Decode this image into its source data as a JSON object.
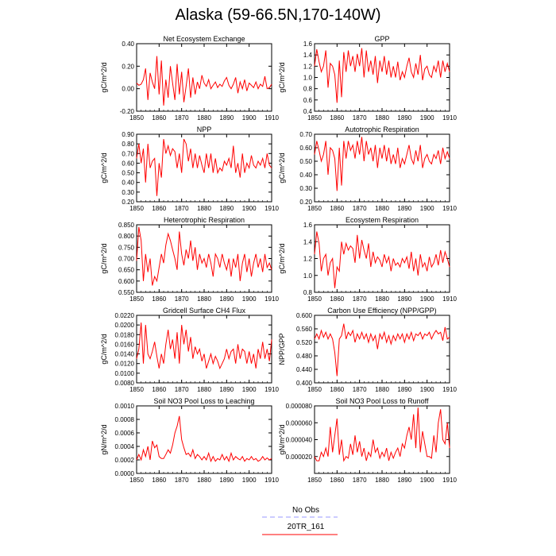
{
  "title": "Alaska (59-66.5N,170-140W)",
  "colors": {
    "obs": "#9999ff",
    "model": "#ff0000"
  },
  "legend": {
    "obs_label": "No Obs",
    "model_label": "20TR_161"
  },
  "chart_data": [
    {
      "type": "line",
      "title": "Net Ecosystem Exchange",
      "ylabel": "gC/m^2/d",
      "xlim": [
        1850,
        1910
      ],
      "ylim": [
        -0.2,
        0.4
      ],
      "xticks": [
        "1850",
        "1860",
        "1870",
        "1880",
        "1890",
        "1900",
        "1910"
      ],
      "yticks": [
        "-0.20",
        "0.00",
        "0.20",
        "0.40"
      ],
      "series": [
        {
          "values": [
            0.05,
            0.03,
            0.04,
            0.08,
            0.18,
            -0.1,
            0.14,
            0.06,
            0.0,
            0.29,
            -0.05,
            0.25,
            -0.15,
            0.08,
            -0.08,
            0.2,
            0.05,
            -0.1,
            0.22,
            -0.05,
            0.15,
            -0.12,
            0.02,
            0.18,
            -0.08,
            0.1,
            -0.05,
            0.06,
            0.0,
            0.12,
            0.05,
            0.02,
            0.08,
            0.0,
            0.03,
            0.06,
            0.01,
            0.04,
            0.02,
            0.07,
            0.1,
            0.03,
            0.0,
            0.04,
            0.1,
            -0.04,
            0.06,
            0.0,
            0.08,
            -0.02,
            0.05,
            0.03,
            0.01,
            0.06,
            0.0,
            0.04,
            0.02,
            0.11,
            0.0,
            0.01,
            0.04
          ]
        }
      ]
    },
    {
      "type": "line",
      "title": "GPP",
      "ylabel": "gC/m^2/d",
      "xlim": [
        1850,
        1910
      ],
      "ylim": [
        0.4,
        1.6
      ],
      "xticks": [
        "1850",
        "1860",
        "1870",
        "1880",
        "1890",
        "1900",
        "1910"
      ],
      "yticks": [
        "0.4",
        "0.6",
        "0.8",
        "1.0",
        "1.2",
        "1.4",
        "1.6"
      ],
      "series": [
        {
          "values": [
            1.2,
            1.5,
            1.28,
            1.1,
            1.2,
            1.48,
            0.82,
            1.25,
            1.2,
            1.05,
            0.55,
            1.3,
            0.65,
            1.45,
            1.1,
            1.48,
            1.2,
            1.38,
            1.1,
            1.42,
            1.2,
            1.52,
            1.0,
            1.48,
            1.1,
            1.3,
            1.05,
            1.38,
            0.9,
            1.3,
            1.1,
            1.38,
            1.05,
            1.3,
            1.0,
            1.2,
            1.0,
            1.28,
            0.95,
            1.1,
            1.0,
            1.2,
            1.35,
            1.1,
            1.0,
            1.25,
            1.05,
            1.4,
            0.95,
            1.15,
            1.2,
            1.05,
            1.0,
            1.2,
            1.1,
            1.3,
            1.0,
            1.3,
            1.1,
            1.25,
            1.1
          ]
        }
      ]
    },
    {
      "type": "line",
      "title": "NPP",
      "ylabel": "gC/m^2/d",
      "xlim": [
        1850,
        1910
      ],
      "ylim": [
        0.2,
        0.9
      ],
      "xticks": [
        "1850",
        "1860",
        "1870",
        "1880",
        "1890",
        "1900",
        "1910"
      ],
      "yticks": [
        "0.20",
        "0.30",
        "0.40",
        "0.50",
        "0.60",
        "0.70",
        "0.80",
        "0.90"
      ],
      "series": [
        {
          "values": [
            0.65,
            0.8,
            0.6,
            0.75,
            0.4,
            0.8,
            0.55,
            0.62,
            0.65,
            0.26,
            0.6,
            0.45,
            0.85,
            0.7,
            0.78,
            0.68,
            0.75,
            0.72,
            0.55,
            0.7,
            0.5,
            0.85,
            0.8,
            0.62,
            0.75,
            0.55,
            0.7,
            0.55,
            0.68,
            0.58,
            0.5,
            0.7,
            0.55,
            0.7,
            0.5,
            0.65,
            0.5,
            0.55,
            0.52,
            0.62,
            0.58,
            0.65,
            0.55,
            0.78,
            0.5,
            0.6,
            0.45,
            0.7,
            0.5,
            0.6,
            0.55,
            0.68,
            0.58,
            0.55,
            0.62,
            0.58,
            0.65,
            0.55,
            0.7,
            0.58,
            0.55
          ]
        }
      ]
    },
    {
      "type": "line",
      "title": "Autotrophic Respiration",
      "ylabel": "gC/m^2/d",
      "xlim": [
        1850,
        1910
      ],
      "ylim": [
        0.2,
        0.7
      ],
      "xticks": [
        "1850",
        "1860",
        "1870",
        "1880",
        "1890",
        "1900",
        "1910"
      ],
      "yticks": [
        "0.20",
        "0.30",
        "0.40",
        "0.50",
        "0.60",
        "0.70"
      ],
      "series": [
        {
          "values": [
            0.55,
            0.65,
            0.58,
            0.5,
            0.55,
            0.65,
            0.4,
            0.6,
            0.58,
            0.52,
            0.28,
            0.6,
            0.32,
            0.65,
            0.52,
            0.65,
            0.58,
            0.62,
            0.52,
            0.65,
            0.55,
            0.68,
            0.5,
            0.65,
            0.55,
            0.6,
            0.5,
            0.62,
            0.45,
            0.6,
            0.52,
            0.62,
            0.5,
            0.6,
            0.48,
            0.55,
            0.48,
            0.6,
            0.45,
            0.52,
            0.48,
            0.55,
            0.62,
            0.52,
            0.48,
            0.58,
            0.5,
            0.62,
            0.45,
            0.52,
            0.55,
            0.5,
            0.48,
            0.55,
            0.52,
            0.58,
            0.48,
            0.6,
            0.52,
            0.57,
            0.52
          ]
        }
      ]
    },
    {
      "type": "line",
      "title": "Heterotrophic Respiration",
      "ylabel": "gC/m^2/d",
      "xlim": [
        1850,
        1910
      ],
      "ylim": [
        0.55,
        0.85
      ],
      "xticks": [
        "1850",
        "1860",
        "1870",
        "1880",
        "1890",
        "1900",
        "1910"
      ],
      "yticks": [
        "0.550",
        "0.600",
        "0.650",
        "0.700",
        "0.750",
        "0.800",
        "0.850"
      ],
      "series": [
        {
          "values": [
            0.69,
            0.84,
            0.78,
            0.6,
            0.72,
            0.64,
            0.7,
            0.58,
            0.62,
            0.6,
            0.66,
            0.72,
            0.68,
            0.76,
            0.81,
            0.78,
            0.74,
            0.7,
            0.65,
            0.82,
            0.72,
            0.67,
            0.74,
            0.7,
            0.78,
            0.69,
            0.75,
            0.65,
            0.72,
            0.68,
            0.7,
            0.66,
            0.72,
            0.68,
            0.62,
            0.72,
            0.7,
            0.66,
            0.72,
            0.68,
            0.65,
            0.7,
            0.62,
            0.7,
            0.66,
            0.72,
            0.6,
            0.68,
            0.72,
            0.64,
            0.7,
            0.62,
            0.68,
            0.72,
            0.66,
            0.7,
            0.64,
            0.72,
            0.66,
            0.68,
            0.65
          ]
        }
      ]
    },
    {
      "type": "line",
      "title": "Ecosystem Respiration",
      "ylabel": "gC/m^2/d",
      "xlim": [
        1850,
        1910
      ],
      "ylim": [
        0.8,
        1.6
      ],
      "xticks": [
        "1850",
        "1860",
        "1870",
        "1880",
        "1890",
        "1900",
        "1910"
      ],
      "yticks": [
        "0.8",
        "1.0",
        "1.2",
        "1.4",
        "1.6"
      ],
      "series": [
        {
          "values": [
            1.25,
            1.52,
            1.38,
            1.05,
            1.2,
            1.25,
            1.0,
            1.15,
            1.2,
            0.85,
            1.1,
            1.05,
            1.4,
            1.25,
            1.38,
            1.3,
            1.35,
            1.32,
            1.15,
            1.48,
            1.2,
            1.42,
            1.3,
            1.2,
            1.38,
            1.1,
            1.28,
            1.15,
            1.22,
            1.18,
            1.1,
            1.25,
            1.15,
            1.22,
            1.05,
            1.2,
            1.12,
            1.15,
            1.1,
            1.2,
            1.15,
            1.22,
            1.08,
            1.28,
            1.05,
            1.2,
            1.0,
            1.25,
            1.1,
            1.15,
            1.05,
            1.22,
            1.1,
            1.15,
            1.25,
            1.12,
            1.3,
            1.15,
            1.28,
            1.2,
            1.1
          ]
        }
      ]
    },
    {
      "type": "line",
      "title": "Gridcell Surface CH4 Flux",
      "ylabel": "gC/m^2/d",
      "xlim": [
        1850,
        1910
      ],
      "ylim": [
        0.008,
        0.022
      ],
      "xticks": [
        "1850",
        "1860",
        "1870",
        "1880",
        "1890",
        "1900",
        "1910"
      ],
      "yticks": [
        "0.0080",
        "0.0100",
        "0.0120",
        "0.0140",
        "0.0160",
        "0.0180",
        "0.0200",
        "0.0220"
      ],
      "series": [
        {
          "values": [
            0.013,
            0.015,
            0.0205,
            0.012,
            0.02,
            0.014,
            0.013,
            0.0145,
            0.0165,
            0.0135,
            0.011,
            0.014,
            0.012,
            0.016,
            0.019,
            0.015,
            0.017,
            0.013,
            0.0185,
            0.012,
            0.02,
            0.016,
            0.019,
            0.0145,
            0.0175,
            0.013,
            0.0155,
            0.014,
            0.015,
            0.0125,
            0.014,
            0.011,
            0.0125,
            0.014,
            0.012,
            0.0135,
            0.0125,
            0.011,
            0.012,
            0.013,
            0.015,
            0.013,
            0.0145,
            0.015,
            0.012,
            0.016,
            0.013,
            0.015,
            0.0145,
            0.012,
            0.0145,
            0.012,
            0.014,
            0.011,
            0.015,
            0.013,
            0.0165,
            0.013,
            0.015,
            0.0125,
            0.017
          ]
        }
      ]
    },
    {
      "type": "line",
      "title": "Carbon Use Efficiency (NPP/GPP)",
      "ylabel": "NPP/GPP",
      "xlim": [
        1850,
        1910
      ],
      "ylim": [
        0.4,
        0.6
      ],
      "xticks": [
        "1850",
        "1860",
        "1870",
        "1880",
        "1890",
        "1900",
        "1910"
      ],
      "yticks": [
        "0.400",
        "0.440",
        "0.480",
        "0.520",
        "0.560",
        "0.600"
      ],
      "series": [
        {
          "values": [
            0.53,
            0.545,
            0.53,
            0.555,
            0.535,
            0.55,
            0.53,
            0.545,
            0.53,
            0.49,
            0.42,
            0.53,
            0.54,
            0.575,
            0.53,
            0.55,
            0.54,
            0.555,
            0.52,
            0.545,
            0.53,
            0.55,
            0.53,
            0.545,
            0.52,
            0.545,
            0.525,
            0.54,
            0.5,
            0.545,
            0.53,
            0.55,
            0.52,
            0.54,
            0.515,
            0.54,
            0.525,
            0.545,
            0.53,
            0.545,
            0.52,
            0.545,
            0.53,
            0.55,
            0.525,
            0.545,
            0.54,
            0.55,
            0.53,
            0.545,
            0.54,
            0.55,
            0.53,
            0.545,
            0.555,
            0.545,
            0.55,
            0.525,
            0.565,
            0.53,
            0.535
          ]
        }
      ]
    },
    {
      "type": "line",
      "title": "Soil NO3 Pool Loss to Leaching",
      "ylabel": "gN/m^2/d",
      "xlim": [
        1850,
        1910
      ],
      "ylim": [
        0.0,
        0.001
      ],
      "xticks": [
        "1850",
        "1860",
        "1870",
        "1880",
        "1890",
        "1900",
        "1910"
      ],
      "yticks": [
        "0.0000",
        "0.0002",
        "0.0004",
        "0.0006",
        "0.0008",
        "0.0010"
      ],
      "series": [
        {
          "values": [
            0.0002,
            0.00028,
            0.0002,
            0.00035,
            0.00025,
            0.0004,
            0.0002,
            0.00048,
            0.00038,
            0.00042,
            0.00025,
            0.00022,
            0.00022,
            0.00028,
            0.00035,
            0.0003,
            0.00042,
            0.0006,
            0.0007,
            0.00085,
            0.0005,
            0.00038,
            0.00028,
            0.0003,
            0.00025,
            0.00035,
            0.00022,
            0.00028,
            0.00025,
            0.0002,
            0.00025,
            0.0002,
            0.0003,
            0.00018,
            0.00025,
            0.00018,
            0.00022,
            0.0002,
            0.00028,
            0.0002,
            0.00025,
            0.00018,
            0.0003,
            0.0002,
            0.00025,
            0.00022,
            0.0002,
            0.00025,
            0.00018,
            0.00022,
            0.0002,
            0.00025,
            0.0002,
            0.00022,
            0.00018,
            0.0002,
            0.00025,
            0.0002,
            0.00023,
            0.0002,
            0.00022
          ]
        }
      ]
    },
    {
      "type": "line",
      "title": "Soil NO3 Pool Loss to Runoff",
      "ylabel": "gN/m^2/d",
      "xlim": [
        1850,
        1910
      ],
      "ylim": [
        0.0,
        8e-05
      ],
      "xticks": [
        "1850",
        "1860",
        "1870",
        "1880",
        "1890",
        "1900",
        "1910"
      ],
      "yticks": [
        "0.000020",
        "0.000040",
        "0.000060",
        "0.000080"
      ],
      "series": [
        {
          "values": [
            2e-05,
            1.5e-05,
            1.5e-05,
            2.5e-05,
            2e-05,
            3e-05,
            2e-05,
            5.5e-05,
            2.5e-05,
            4.5e-05,
            6.5e-05,
            2.2e-05,
            4e-05,
            1.5e-05,
            2e-05,
            1.8e-05,
            3.5e-05,
            2.2e-05,
            4.5e-05,
            2.5e-05,
            3.8e-05,
            2e-05,
            3e-05,
            1.5e-05,
            2.5e-05,
            2e-05,
            4e-05,
            2.5e-05,
            3e-05,
            1.8e-05,
            2.5e-05,
            2e-05,
            3e-05,
            1.5e-05,
            2.5e-05,
            1.8e-05,
            2.5e-05,
            3e-05,
            2e-05,
            3.5e-05,
            3e-05,
            4.5e-05,
            5.5e-05,
            4e-05,
            7e-05,
            3e-05,
            7.8e-05,
            2.5e-05,
            5e-05,
            3.5e-05,
            2e-05,
            2e-05,
            1.8e-05,
            4.5e-05,
            2.5e-05,
            6e-05,
            7.6e-05,
            4e-05,
            3.5e-05,
            6e-05,
            3e-05
          ]
        }
      ]
    }
  ]
}
